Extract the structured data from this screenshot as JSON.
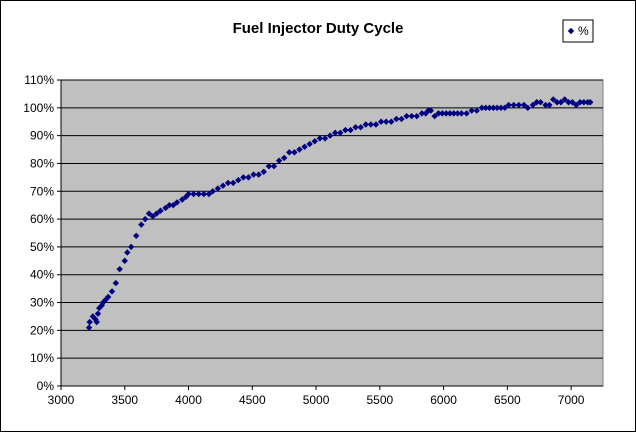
{
  "chart_data": {
    "type": "scatter",
    "title": "Fuel Injector Duty Cycle",
    "xlabel": "",
    "ylabel": "",
    "xlim": [
      3000,
      7250
    ],
    "ylim": [
      0,
      110
    ],
    "x_ticks": [
      3000,
      3500,
      4000,
      4500,
      5000,
      5500,
      6000,
      6500,
      7000
    ],
    "y_ticks": [
      0,
      10,
      20,
      30,
      40,
      50,
      60,
      70,
      80,
      90,
      100,
      110
    ],
    "y_tick_labels": [
      "0%",
      "10%",
      "20%",
      "30%",
      "40%",
      "50%",
      "60%",
      "70%",
      "80%",
      "90%",
      "100%",
      "110%"
    ],
    "grid": "horizontal",
    "legend_position": "top-right",
    "colors": {
      "plot_bg": "#c0c0c0",
      "marker": "#000080",
      "page_bg": "#ffffff"
    },
    "series": [
      {
        "name": "%",
        "marker": "diamond",
        "points": [
          [
            3220,
            21
          ],
          [
            3225,
            23
          ],
          [
            3250,
            25
          ],
          [
            3270,
            24
          ],
          [
            3280,
            23
          ],
          [
            3290,
            26
          ],
          [
            3300,
            28
          ],
          [
            3320,
            29
          ],
          [
            3330,
            30
          ],
          [
            3350,
            31
          ],
          [
            3370,
            32
          ],
          [
            3400,
            34
          ],
          [
            3430,
            37
          ],
          [
            3460,
            42
          ],
          [
            3500,
            45
          ],
          [
            3520,
            48
          ],
          [
            3550,
            50
          ],
          [
            3590,
            54
          ],
          [
            3630,
            58
          ],
          [
            3660,
            60
          ],
          [
            3690,
            62
          ],
          [
            3720,
            61
          ],
          [
            3750,
            62
          ],
          [
            3780,
            63
          ],
          [
            3820,
            64
          ],
          [
            3850,
            65
          ],
          [
            3880,
            65
          ],
          [
            3910,
            66
          ],
          [
            3950,
            67
          ],
          [
            3980,
            68
          ],
          [
            4000,
            69
          ],
          [
            4040,
            69
          ],
          [
            4080,
            69
          ],
          [
            4120,
            69
          ],
          [
            4160,
            69
          ],
          [
            4190,
            70
          ],
          [
            4230,
            71
          ],
          [
            4270,
            72
          ],
          [
            4310,
            73
          ],
          [
            4350,
            73
          ],
          [
            4390,
            74
          ],
          [
            4430,
            75
          ],
          [
            4470,
            75
          ],
          [
            4510,
            76
          ],
          [
            4550,
            76
          ],
          [
            4590,
            77
          ],
          [
            4630,
            79
          ],
          [
            4670,
            79
          ],
          [
            4710,
            81
          ],
          [
            4750,
            82
          ],
          [
            4790,
            84
          ],
          [
            4830,
            84
          ],
          [
            4870,
            85
          ],
          [
            4910,
            86
          ],
          [
            4950,
            87
          ],
          [
            4990,
            88
          ],
          [
            5030,
            89
          ],
          [
            5070,
            89
          ],
          [
            5110,
            90
          ],
          [
            5150,
            91
          ],
          [
            5190,
            91
          ],
          [
            5230,
            92
          ],
          [
            5270,
            92
          ],
          [
            5310,
            93
          ],
          [
            5350,
            93
          ],
          [
            5390,
            94
          ],
          [
            5430,
            94
          ],
          [
            5470,
            94
          ],
          [
            5510,
            95
          ],
          [
            5550,
            95
          ],
          [
            5590,
            95
          ],
          [
            5630,
            96
          ],
          [
            5670,
            96
          ],
          [
            5710,
            97
          ],
          [
            5750,
            97
          ],
          [
            5790,
            97
          ],
          [
            5830,
            98
          ],
          [
            5860,
            98
          ],
          [
            5880,
            99
          ],
          [
            5900,
            99
          ],
          [
            5930,
            97
          ],
          [
            5960,
            98
          ],
          [
            5990,
            98
          ],
          [
            6020,
            98
          ],
          [
            6050,
            98
          ],
          [
            6080,
            98
          ],
          [
            6110,
            98
          ],
          [
            6140,
            98
          ],
          [
            6180,
            98
          ],
          [
            6220,
            99
          ],
          [
            6260,
            99
          ],
          [
            6300,
            100
          ],
          [
            6330,
            100
          ],
          [
            6360,
            100
          ],
          [
            6390,
            100
          ],
          [
            6420,
            100
          ],
          [
            6450,
            100
          ],
          [
            6480,
            100
          ],
          [
            6510,
            101
          ],
          [
            6550,
            101
          ],
          [
            6590,
            101
          ],
          [
            6630,
            101
          ],
          [
            6660,
            100
          ],
          [
            6700,
            101
          ],
          [
            6730,
            102
          ],
          [
            6760,
            102
          ],
          [
            6800,
            101
          ],
          [
            6830,
            101
          ],
          [
            6860,
            103
          ],
          [
            6890,
            102
          ],
          [
            6920,
            102
          ],
          [
            6950,
            103
          ],
          [
            6980,
            102
          ],
          [
            7010,
            102
          ],
          [
            7040,
            101
          ],
          [
            7070,
            102
          ],
          [
            7100,
            102
          ],
          [
            7130,
            102
          ],
          [
            7150,
            102
          ]
        ]
      }
    ]
  }
}
